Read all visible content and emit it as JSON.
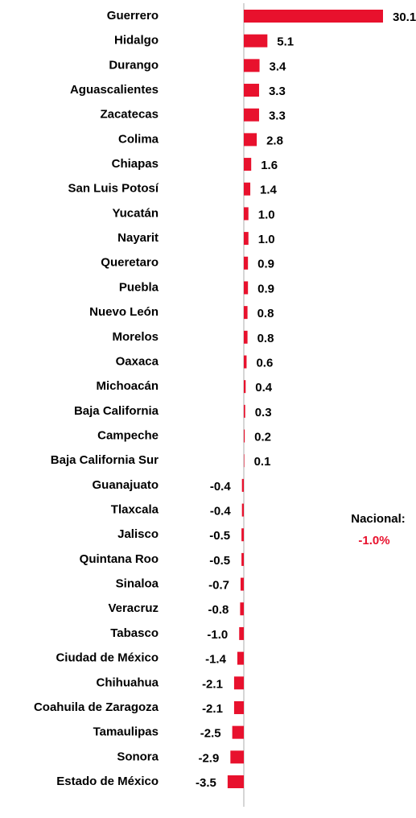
{
  "chart_data": {
    "type": "bar",
    "orientation": "horizontal",
    "color": "#e8112d",
    "categories": [
      "Guerrero",
      "Hidalgo",
      "Durango",
      "Aguascalientes",
      "Zacatecas",
      "Colima",
      "Chiapas",
      "San Luis Potosí",
      "Yucatán",
      "Nayarit",
      "Queretaro",
      "Puebla",
      "Nuevo León",
      "Morelos",
      "Oaxaca",
      "Michoacán",
      "Baja California",
      "Campeche",
      "Baja California Sur",
      "Guanajuato",
      "Tlaxcala",
      "Jalisco",
      "Quintana Roo",
      "Sinaloa",
      "Veracruz",
      "Tabasco",
      "Ciudad de México",
      "Chihuahua",
      "Coahuila de Zaragoza",
      "Tamaulipas",
      "Sonora",
      "Estado de México"
    ],
    "values": [
      30.1,
      5.1,
      3.4,
      3.3,
      3.3,
      2.8,
      1.6,
      1.4,
      1.0,
      1.0,
      0.9,
      0.9,
      0.8,
      0.8,
      0.6,
      0.4,
      0.3,
      0.2,
      0.1,
      -0.4,
      -0.4,
      -0.5,
      -0.5,
      -0.7,
      -0.8,
      -1.0,
      -1.4,
      -2.1,
      -2.1,
      -2.5,
      -2.9,
      -3.5
    ],
    "value_labels": [
      "30.1",
      "5.1",
      "3.4",
      "3.3",
      "3.3",
      "2.8",
      "1.6",
      "1.4",
      "1.0",
      "1.0",
      "0.9",
      "0.9",
      "0.8",
      "0.8",
      "0.6",
      "0.4",
      "0.3",
      "0.2",
      "0.1",
      "-0.4",
      "-0.4",
      "-0.5",
      "-0.5",
      "-0.7",
      "-0.8",
      "-1.0",
      "-1.4",
      "-2.1",
      "-2.1",
      "-2.5",
      "-2.9",
      "-3.5"
    ],
    "annotations": [
      "Nacional:",
      "-1.0%"
    ]
  }
}
